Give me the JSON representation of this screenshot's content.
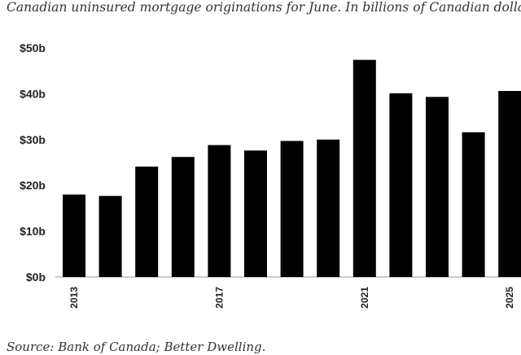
{
  "chart_data": {
    "type": "bar",
    "title": "Canadian uninsured mortgage originations for June. In billions of Canadian dollars.",
    "source": "Source: Bank of Canada; Better Dwelling.",
    "categories": [
      "2013",
      "2014",
      "2015",
      "2016",
      "2017",
      "2018",
      "2019",
      "2020",
      "2021",
      "2022",
      "2023",
      "2024",
      "2025"
    ],
    "x_tick_labels": [
      "2013",
      "2017",
      "2021",
      "2025"
    ],
    "values": [
      18.0,
      17.7,
      24.1,
      26.2,
      28.8,
      27.6,
      29.7,
      30.0,
      47.4,
      40.1,
      39.3,
      31.6,
      40.6
    ],
    "y_ticks": [
      0,
      10,
      20,
      30,
      40,
      50
    ],
    "y_tick_labels": [
      "$0b",
      "$10b",
      "$20b",
      "$30b",
      "$40b",
      "$50b"
    ],
    "ylim": [
      0,
      50
    ],
    "bar_color": "#000000",
    "grid": false,
    "legend": "none"
  }
}
